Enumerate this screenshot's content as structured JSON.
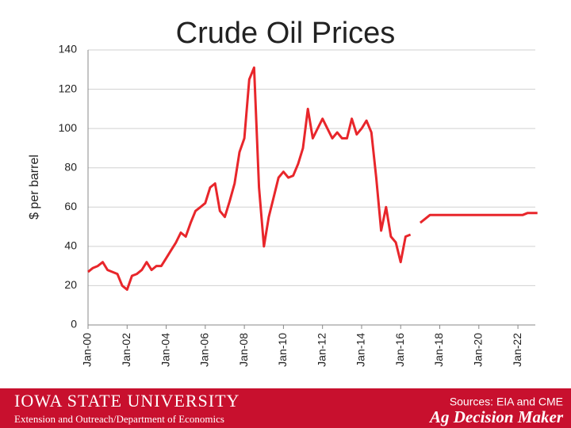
{
  "chart_data": {
    "type": "line",
    "title": "Crude Oil Prices",
    "ylabel": "$ per barrel",
    "categories": [
      "Jan-00",
      null,
      null,
      null,
      null,
      null,
      null,
      null,
      "Jan-02",
      null,
      null,
      null,
      null,
      null,
      null,
      null,
      "Jan-04",
      null,
      null,
      null,
      null,
      null,
      null,
      null,
      "Jan-06",
      null,
      null,
      null,
      null,
      null,
      null,
      null,
      "Jan-08",
      null,
      null,
      null,
      null,
      null,
      null,
      null,
      "Jan-10",
      null,
      null,
      null,
      null,
      null,
      null,
      null,
      "Jan-12",
      null,
      null,
      null,
      null,
      null,
      null,
      null,
      "Jan-14",
      null,
      null,
      null,
      null,
      null,
      null,
      null,
      "Jan-16",
      null,
      null,
      null,
      null,
      null,
      null,
      null,
      "Jan-18",
      null,
      null,
      null,
      null,
      null,
      null,
      null,
      "Jan-20",
      null,
      null,
      null,
      null,
      null,
      null,
      null,
      "Jan-22",
      null,
      null,
      null,
      null
    ],
    "series": [
      {
        "name": "Crude oil price",
        "color": "#e8262b",
        "values": [
          27,
          29,
          30,
          32,
          28,
          27,
          26,
          20,
          18,
          25,
          26,
          28,
          32,
          28,
          30,
          30,
          34,
          38,
          42,
          47,
          45,
          52,
          58,
          60,
          62,
          70,
          72,
          58,
          55,
          63,
          72,
          88,
          95,
          125,
          131,
          70,
          40,
          55,
          65,
          75,
          78,
          75,
          76,
          82,
          90,
          110,
          95,
          100,
          105,
          100,
          95,
          98,
          95,
          95,
          105,
          97,
          100,
          104,
          98,
          75,
          48,
          60,
          45,
          42,
          32,
          45,
          46,
          null,
          52,
          54,
          56,
          56,
          56,
          56,
          56,
          56,
          56,
          56,
          56,
          56,
          56,
          56,
          56,
          56,
          56,
          56,
          56,
          56,
          56,
          56,
          57,
          57,
          57
        ]
      }
    ],
    "ylim": [
      0,
      140
    ],
    "yticks": [
      0,
      20,
      40,
      60,
      80,
      100,
      120,
      140
    ],
    "grid": true
  },
  "footer": {
    "university": "IOWA STATE UNIVERSITY",
    "department": "Extension and Outreach/Department of Economics",
    "sources": "Sources: EIA and CME",
    "brand": "Ag Decision Maker"
  }
}
